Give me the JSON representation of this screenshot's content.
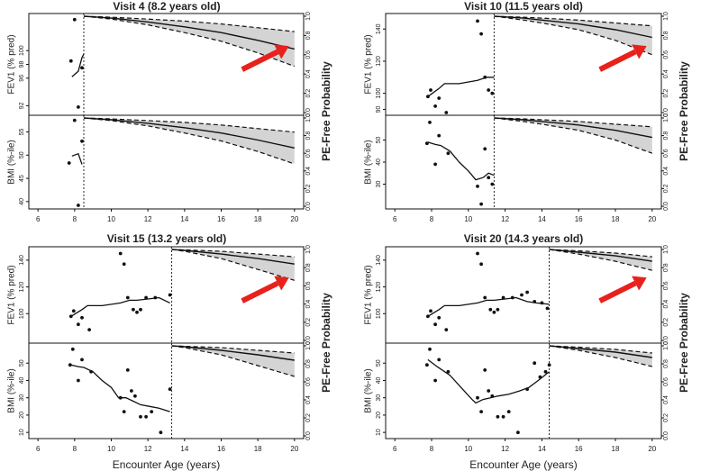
{
  "figure": {
    "xlabel_text": "Encounter Age (years)",
    "arrow_color": "#e8211d",
    "band_color": "#d4d4d4"
  },
  "chart_data": [
    {
      "type": "line",
      "title": "Visit 4 (8.2 years old)",
      "cutoff_age": 8.5,
      "xlim": [
        5.5,
        20.5
      ],
      "x_ticks": [
        6,
        8,
        10,
        12,
        14,
        16,
        18,
        20
      ],
      "show_xlabel": false,
      "arrow": true,
      "right_axis_label": "PE-Free Probability",
      "right_ticks": [
        0.0,
        0.2,
        0.4,
        0.6,
        0.8,
        1.0
      ],
      "top": {
        "ylabel": "FEV1 (% pred)",
        "ylim": [
          91,
          105
        ],
        "y_ticks": [
          92,
          96,
          98,
          100
        ],
        "points": [
          [
            7.8,
            98.5
          ],
          [
            8.0,
            104.5
          ],
          [
            8.2,
            91.8
          ],
          [
            8.4,
            97.5
          ]
        ],
        "line": [
          [
            7.85,
            96.2
          ],
          [
            8.2,
            97.0
          ],
          [
            8.4,
            99.0
          ],
          [
            8.5,
            99.5
          ]
        ],
        "survival": {
          "x": [
            8.5,
            10,
            12,
            14,
            16,
            18,
            20
          ],
          "mean": [
            1.0,
            0.98,
            0.94,
            0.89,
            0.83,
            0.75,
            0.66
          ],
          "upper": [
            1.0,
            0.99,
            0.97,
            0.95,
            0.92,
            0.88,
            0.84
          ],
          "lower": [
            1.0,
            0.97,
            0.91,
            0.83,
            0.74,
            0.62,
            0.48
          ]
        }
      },
      "bottom": {
        "ylabel": "BMI (%-ile)",
        "ylim": [
          39,
          58
        ],
        "y_ticks": [
          40,
          45,
          50,
          55
        ],
        "points": [
          [
            7.7,
            48.3
          ],
          [
            8.0,
            57.5
          ],
          [
            8.2,
            39.2
          ],
          [
            8.4,
            53.0
          ]
        ],
        "line": [
          [
            7.85,
            49.8
          ],
          [
            8.2,
            50.3
          ],
          [
            8.4,
            48.0
          ]
        ],
        "survival": {
          "x": [
            8.5,
            10,
            12,
            14,
            16,
            18,
            20
          ],
          "mean": [
            1.0,
            0.98,
            0.94,
            0.89,
            0.83,
            0.75,
            0.66
          ],
          "upper": [
            1.0,
            0.99,
            0.97,
            0.95,
            0.92,
            0.88,
            0.84
          ],
          "lower": [
            1.0,
            0.97,
            0.91,
            0.83,
            0.74,
            0.62,
            0.48
          ]
        }
      }
    },
    {
      "type": "line",
      "title": "Visit 10 (11.5 years old)",
      "cutoff_age": 11.4,
      "xlim": [
        5.5,
        20.5
      ],
      "x_ticks": [
        6,
        8,
        10,
        12,
        14,
        16,
        18,
        20
      ],
      "show_xlabel": false,
      "arrow": true,
      "right_axis_label": "PE-Free Probability",
      "right_ticks": [
        0.0,
        0.2,
        0.4,
        0.6,
        0.8,
        1.0
      ],
      "top": {
        "ylabel": "FEV1 (% pred)",
        "ylim": [
          88,
          148
        ],
        "y_ticks": [
          90,
          100,
          120,
          140
        ],
        "points": [
          [
            7.8,
            98
          ],
          [
            7.95,
            102
          ],
          [
            8.2,
            92
          ],
          [
            8.4,
            97
          ],
          [
            8.8,
            88
          ],
          [
            10.5,
            145
          ],
          [
            10.7,
            137
          ],
          [
            10.9,
            110
          ],
          [
            11.1,
            102
          ],
          [
            11.3,
            100
          ]
        ],
        "line": [
          [
            7.8,
            98
          ],
          [
            8.4,
            103
          ],
          [
            8.7,
            106
          ],
          [
            9.5,
            106
          ],
          [
            10.5,
            108
          ],
          [
            11.0,
            110
          ],
          [
            11.4,
            110
          ]
        ],
        "survival": {
          "x": [
            11.4,
            13,
            14,
            16,
            18,
            20
          ],
          "mean": [
            1.0,
            0.98,
            0.96,
            0.92,
            0.86,
            0.78
          ],
          "upper": [
            1.0,
            0.99,
            0.98,
            0.96,
            0.93,
            0.9
          ],
          "lower": [
            1.0,
            0.96,
            0.93,
            0.86,
            0.75,
            0.6
          ]
        }
      },
      "bottom": {
        "ylabel": "BMI (%-ile)",
        "ylim": [
          20,
          60
        ],
        "y_ticks": [
          30,
          40,
          50
        ],
        "points": [
          [
            7.75,
            48.5
          ],
          [
            7.9,
            58
          ],
          [
            8.2,
            39
          ],
          [
            8.4,
            52
          ],
          [
            8.9,
            44
          ],
          [
            10.5,
            29
          ],
          [
            10.7,
            21
          ],
          [
            10.9,
            46
          ],
          [
            11.1,
            33
          ],
          [
            11.3,
            30
          ]
        ],
        "line": [
          [
            7.8,
            49
          ],
          [
            8.2,
            48
          ],
          [
            8.5,
            47.5
          ],
          [
            9.0,
            45
          ],
          [
            9.5,
            40
          ],
          [
            10.0,
            36
          ],
          [
            10.4,
            32
          ],
          [
            10.8,
            33
          ],
          [
            11.1,
            35
          ],
          [
            11.4,
            34
          ]
        ],
        "survival": {
          "x": [
            11.4,
            13,
            14,
            16,
            18,
            20
          ],
          "mean": [
            1.0,
            0.98,
            0.96,
            0.92,
            0.86,
            0.78
          ],
          "upper": [
            1.0,
            0.99,
            0.98,
            0.96,
            0.93,
            0.9
          ],
          "lower": [
            1.0,
            0.96,
            0.93,
            0.86,
            0.75,
            0.6
          ]
        }
      }
    },
    {
      "type": "line",
      "title": "Visit 15 (13.2 years old)",
      "cutoff_age": 13.3,
      "xlim": [
        5.5,
        20.5
      ],
      "x_ticks": [
        6,
        8,
        10,
        12,
        14,
        16,
        18,
        20
      ],
      "show_xlabel": true,
      "arrow": true,
      "right_axis_label": "PE-Free Probability",
      "right_ticks": [
        0.0,
        0.2,
        0.4,
        0.6,
        0.8,
        1.0
      ],
      "top": {
        "ylabel": "FEV1 (% pred)",
        "ylim": [
          80,
          148
        ],
        "y_ticks": [
          100,
          120,
          140
        ],
        "points": [
          [
            7.8,
            98
          ],
          [
            7.95,
            102
          ],
          [
            8.2,
            92
          ],
          [
            8.4,
            97
          ],
          [
            8.8,
            88
          ],
          [
            10.5,
            145
          ],
          [
            10.7,
            137
          ],
          [
            10.9,
            112
          ],
          [
            11.2,
            103
          ],
          [
            11.4,
            101
          ],
          [
            11.6,
            103
          ],
          [
            11.9,
            112
          ],
          [
            12.4,
            112
          ],
          [
            13.2,
            114
          ]
        ],
        "line": [
          [
            7.8,
            98
          ],
          [
            8.4,
            103
          ],
          [
            8.7,
            106
          ],
          [
            9.5,
            106
          ],
          [
            10.5,
            108
          ],
          [
            11.0,
            110
          ],
          [
            11.4,
            110
          ],
          [
            12.0,
            111
          ],
          [
            12.6,
            112
          ],
          [
            13.2,
            108
          ]
        ],
        "survival": {
          "x": [
            13.3,
            14,
            16,
            18,
            20
          ],
          "mean": [
            1.0,
            0.99,
            0.95,
            0.9,
            0.84
          ],
          "upper": [
            1.0,
            0.995,
            0.98,
            0.95,
            0.92
          ],
          "lower": [
            1.0,
            0.98,
            0.9,
            0.78,
            0.66
          ]
        }
      },
      "bottom": {
        "ylabel": "BMI (%-ile)",
        "ylim": [
          8,
          60
        ],
        "y_ticks": [
          10,
          20,
          30,
          40,
          50
        ],
        "points": [
          [
            7.75,
            49
          ],
          [
            7.9,
            58
          ],
          [
            8.2,
            40
          ],
          [
            8.4,
            52
          ],
          [
            8.9,
            45
          ],
          [
            10.5,
            30
          ],
          [
            10.7,
            22
          ],
          [
            10.9,
            46
          ],
          [
            11.1,
            34
          ],
          [
            11.3,
            31
          ],
          [
            11.6,
            19
          ],
          [
            11.9,
            19
          ],
          [
            12.2,
            22
          ],
          [
            12.7,
            10
          ],
          [
            13.2,
            35
          ]
        ],
        "line": [
          [
            7.8,
            49
          ],
          [
            8.2,
            48
          ],
          [
            8.5,
            47.5
          ],
          [
            9.0,
            45
          ],
          [
            9.5,
            40
          ],
          [
            10.0,
            36
          ],
          [
            10.4,
            30
          ],
          [
            10.8,
            30
          ],
          [
            11.2,
            28
          ],
          [
            11.6,
            26
          ],
          [
            12.1,
            25
          ],
          [
            12.6,
            24
          ],
          [
            13.2,
            22
          ]
        ],
        "survival": {
          "x": [
            13.3,
            14,
            16,
            18,
            20
          ],
          "mean": [
            1.0,
            0.99,
            0.95,
            0.9,
            0.84
          ],
          "upper": [
            1.0,
            0.995,
            0.98,
            0.95,
            0.92
          ],
          "lower": [
            1.0,
            0.98,
            0.9,
            0.78,
            0.66
          ]
        }
      }
    },
    {
      "type": "line",
      "title": "Visit 20 (14.3 years old)",
      "cutoff_age": 14.4,
      "xlim": [
        5.5,
        20.5
      ],
      "x_ticks": [
        6,
        8,
        10,
        12,
        14,
        16,
        18,
        20
      ],
      "show_xlabel": true,
      "arrow": true,
      "right_axis_label": "PE-Free Probability",
      "right_ticks": [
        0.0,
        0.2,
        0.4,
        0.6,
        0.8,
        1.0
      ],
      "top": {
        "ylabel": "FEV1 (% pred)",
        "ylim": [
          80,
          148
        ],
        "y_ticks": [
          100,
          120,
          140
        ],
        "points": [
          [
            7.8,
            98
          ],
          [
            7.95,
            102
          ],
          [
            8.2,
            92
          ],
          [
            8.4,
            97
          ],
          [
            8.8,
            88
          ],
          [
            10.5,
            145
          ],
          [
            10.7,
            137
          ],
          [
            10.9,
            112
          ],
          [
            11.2,
            103
          ],
          [
            11.4,
            101
          ],
          [
            11.6,
            103
          ],
          [
            11.9,
            112
          ],
          [
            12.4,
            112
          ],
          [
            12.9,
            114
          ],
          [
            13.2,
            116
          ],
          [
            13.6,
            109
          ],
          [
            14.0,
            108
          ],
          [
            14.3,
            104
          ]
        ],
        "line": [
          [
            7.8,
            98
          ],
          [
            8.4,
            103
          ],
          [
            8.7,
            106
          ],
          [
            9.5,
            106
          ],
          [
            10.5,
            108
          ],
          [
            11.0,
            110
          ],
          [
            11.4,
            110
          ],
          [
            12.0,
            111
          ],
          [
            12.6,
            112
          ],
          [
            13.2,
            109
          ],
          [
            13.7,
            108
          ],
          [
            14.4,
            107
          ]
        ],
        "survival": {
          "x": [
            14.4,
            16,
            18,
            20
          ],
          "mean": [
            1.0,
            0.97,
            0.93,
            0.87
          ],
          "upper": [
            1.0,
            0.985,
            0.96,
            0.92
          ],
          "lower": [
            1.0,
            0.95,
            0.87,
            0.77
          ]
        }
      },
      "bottom": {
        "ylabel": "BMI (%-ile)",
        "ylim": [
          8,
          60
        ],
        "y_ticks": [
          10,
          20,
          30,
          40,
          50
        ],
        "points": [
          [
            7.75,
            49
          ],
          [
            7.9,
            58
          ],
          [
            8.2,
            40
          ],
          [
            8.4,
            52
          ],
          [
            8.9,
            45
          ],
          [
            10.5,
            30
          ],
          [
            10.7,
            22
          ],
          [
            10.9,
            46
          ],
          [
            11.1,
            34
          ],
          [
            11.3,
            31
          ],
          [
            11.6,
            19
          ],
          [
            11.9,
            19
          ],
          [
            12.2,
            22
          ],
          [
            12.7,
            10
          ],
          [
            13.2,
            35
          ],
          [
            13.6,
            50
          ],
          [
            13.9,
            42
          ],
          [
            14.2,
            45
          ],
          [
            14.4,
            49
          ]
        ],
        "line": [
          [
            7.8,
            52
          ],
          [
            8.3,
            48
          ],
          [
            9.0,
            43
          ],
          [
            9.6,
            36
          ],
          [
            10.2,
            29
          ],
          [
            10.4,
            27
          ],
          [
            10.8,
            29
          ],
          [
            11.2,
            30
          ],
          [
            11.6,
            31
          ],
          [
            12.2,
            32
          ],
          [
            12.8,
            34
          ],
          [
            13.3,
            36
          ],
          [
            13.8,
            40
          ],
          [
            14.4,
            45
          ]
        ],
        "survival": {
          "x": [
            14.4,
            16,
            18,
            20
          ],
          "mean": [
            1.0,
            0.97,
            0.93,
            0.87
          ],
          "upper": [
            1.0,
            0.985,
            0.96,
            0.92
          ],
          "lower": [
            1.0,
            0.95,
            0.87,
            0.77
          ]
        }
      }
    }
  ]
}
